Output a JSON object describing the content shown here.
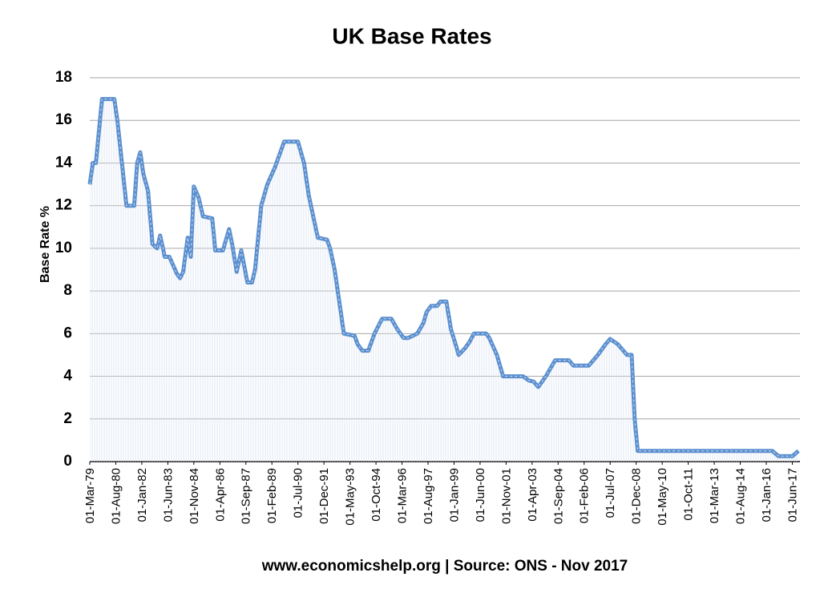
{
  "chart_data": {
    "type": "line",
    "title": "UK Base Rates",
    "ylabel": "Base Rate %",
    "source": "www.economicshelp.org | Source: ONS - Nov 2017",
    "x": [
      "01-Mar-79",
      "01-May-79",
      "01-Jul-79",
      "01-Nov-79",
      "01-Jul-80",
      "01-Sep-80",
      "01-Dec-80",
      "01-Mar-81",
      "01-Aug-81",
      "01-Oct-81",
      "01-Dec-81",
      "01-Feb-82",
      "01-May-82",
      "01-Aug-82",
      "01-Nov-82",
      "01-Jan-83",
      "01-Apr-83",
      "01-Jul-83",
      "01-Dec-83",
      "01-Feb-84",
      "01-Apr-84",
      "01-Jul-84",
      "01-Sep-84",
      "01-Nov-84",
      "01-Feb-85",
      "01-May-85",
      "01-Nov-85",
      "01-Jan-86",
      "01-Jun-86",
      "01-Oct-86",
      "01-Dec-86",
      "01-Mar-87",
      "01-Jun-87",
      "01-Oct-87",
      "01-Jan-88",
      "01-Mar-88",
      "01-Jul-88",
      "01-Nov-88",
      "01-Apr-89",
      "01-Oct-89",
      "01-Jul-90",
      "01-Nov-90",
      "01-Feb-91",
      "01-May-91",
      "01-Aug-91",
      "01-Feb-92",
      "01-Apr-92",
      "01-Jul-92",
      "01-Nov-92",
      "01-Jan-93",
      "01-Aug-93",
      "01-Oct-93",
      "01-Jan-94",
      "01-May-94",
      "01-Sep-94",
      "01-Feb-95",
      "01-Aug-95",
      "01-Dec-95",
      "01-Apr-96",
      "01-Jul-96",
      "01-Jan-97",
      "01-May-97",
      "01-Jul-97",
      "01-Oct-97",
      "01-Feb-98",
      "01-Apr-98",
      "01-Aug-98",
      "01-Nov-98",
      "01-Feb-99",
      "01-Apr-99",
      "01-Aug-99",
      "01-Nov-99",
      "01-Feb-00",
      "01-Oct-00",
      "01-Dec-00",
      "01-May-01",
      "01-Sep-01",
      "01-Oct-02",
      "01-Feb-03",
      "01-May-03",
      "01-Aug-03",
      "01-Nov-03",
      "01-Jan-04",
      "01-May-04",
      "01-Jul-04",
      "01-Apr-05",
      "01-Jul-05",
      "01-May-06",
      "01-Aug-06",
      "01-Nov-06",
      "01-Apr-07",
      "01-Jul-07",
      "01-Dec-07",
      "01-Mar-08",
      "01-Jun-08",
      "01-Sep-08",
      "01-Nov-08",
      "01-Jan-09",
      "01-May-16",
      "01-Sep-16",
      "01-Jun-17",
      "01-Oct-17"
    ],
    "series": [
      {
        "color": "#5b8fcf",
        "values": [
          13,
          14,
          14,
          17,
          17,
          16,
          14,
          12,
          12,
          14,
          14.5,
          13.5,
          12.7,
          10.2,
          10,
          10.6,
          9.6,
          9.6,
          8.8,
          8.6,
          8.9,
          10.5,
          9.6,
          12.9,
          12.4,
          11.5,
          11.4,
          9.9,
          9.9,
          10.9,
          10.2,
          8.9,
          9.9,
          8.4,
          8.4,
          9,
          12,
          13,
          13.8,
          15,
          15,
          14,
          12.5,
          11.5,
          10.5,
          10.4,
          10,
          9,
          7,
          6,
          5.9,
          5.5,
          5.2,
          5.2,
          6,
          6.7,
          6.7,
          6.2,
          5.8,
          5.8,
          6,
          6.5,
          7,
          7.3,
          7.3,
          7.5,
          7.5,
          6.2,
          5.5,
          5,
          5.3,
          5.6,
          6,
          6,
          5.8,
          5,
          4,
          4,
          3.8,
          3.75,
          3.5,
          3.8,
          4,
          4.5,
          4.75,
          4.75,
          4.5,
          4.5,
          4.75,
          5,
          5.5,
          5.75,
          5.5,
          5.25,
          5,
          5,
          2,
          0.5,
          0.5,
          0.25,
          0.25,
          0.5
        ]
      }
    ],
    "xlim": [
      "01-Mar-79",
      "01-Nov-17"
    ],
    "xticks": [
      "01-Mar-79",
      "01-Aug-80",
      "01-Jan-82",
      "01-Jun-83",
      "01-Nov-84",
      "01-Apr-86",
      "01-Sep-87",
      "01-Feb-89",
      "01-Jul-90",
      "01-Dec-91",
      "01-May-93",
      "01-Oct-94",
      "01-Mar-96",
      "01-Aug-97",
      "01-Jan-99",
      "01-Jun-00",
      "01-Nov-01",
      "01-Apr-03",
      "01-Sep-04",
      "01-Feb-06",
      "01-Jul-07",
      "01-Dec-08",
      "01-May-10",
      "01-Oct-11",
      "01-Mar-13",
      "01-Aug-14",
      "01-Jan-16",
      "01-Jun-17"
    ],
    "ylim": [
      0,
      18
    ],
    "yticks": [
      0,
      2,
      4,
      6,
      8,
      10,
      12,
      14,
      16,
      18
    ],
    "grid": true
  }
}
